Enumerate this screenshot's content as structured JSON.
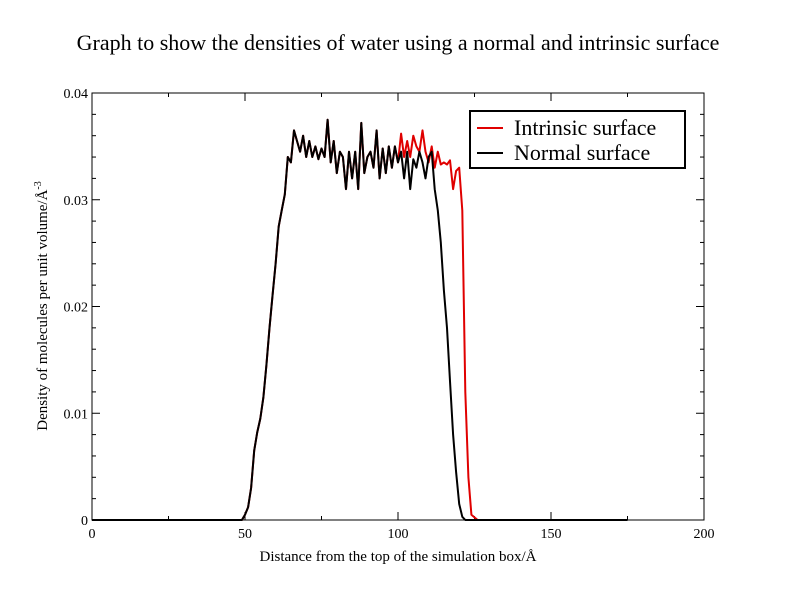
{
  "chart_data": {
    "type": "line",
    "title": "Graph to show the densities of water using a normal and intrinsic surface",
    "xlabel": "Distance from the top of the simulation box/Å",
    "ylabel": "Density of molecules per unit volume/Å",
    "ylabel_superscript": "-3",
    "xlim": [
      0,
      200
    ],
    "ylim": [
      0,
      0.04
    ],
    "x_ticks": [
      "0",
      "50",
      "100",
      "150",
      "200"
    ],
    "y_ticks": [
      "0",
      "0.01",
      "0.02",
      "0.03",
      "0.04"
    ],
    "legend_position": "top-right",
    "grid": false,
    "series": [
      {
        "name": "Intrinsic surface",
        "color": "#e00000",
        "x": [
          0,
          20,
          40,
          49,
          50,
          51,
          52,
          53,
          54,
          55,
          56,
          57,
          58,
          59,
          60,
          61,
          62,
          63,
          64,
          65,
          66,
          67,
          68,
          69,
          70,
          71,
          72,
          73,
          74,
          75,
          76,
          77,
          78,
          79,
          80,
          81,
          82,
          83,
          84,
          85,
          86,
          87,
          88,
          89,
          90,
          91,
          92,
          93,
          94,
          95,
          96,
          97,
          98,
          99,
          100,
          101,
          102,
          103,
          104,
          105,
          106,
          107,
          108,
          109,
          110,
          111,
          112,
          113,
          114,
          115,
          116,
          117,
          118,
          119,
          120,
          121,
          122,
          123,
          124,
          126,
          140,
          160,
          175
        ],
        "y": [
          0,
          0,
          0,
          0,
          0.0005,
          0.0012,
          0.003,
          0.0065,
          0.0082,
          0.0095,
          0.0115,
          0.0145,
          0.018,
          0.021,
          0.024,
          0.0275,
          0.029,
          0.0305,
          0.034,
          0.0335,
          0.0365,
          0.0355,
          0.0345,
          0.036,
          0.034,
          0.0355,
          0.034,
          0.035,
          0.0338,
          0.0348,
          0.034,
          0.0375,
          0.0335,
          0.0355,
          0.0325,
          0.0345,
          0.034,
          0.031,
          0.0345,
          0.032,
          0.0345,
          0.031,
          0.0372,
          0.0325,
          0.034,
          0.0345,
          0.033,
          0.0365,
          0.032,
          0.0348,
          0.0325,
          0.035,
          0.033,
          0.035,
          0.0335,
          0.0362,
          0.034,
          0.0355,
          0.034,
          0.036,
          0.035,
          0.0345,
          0.0365,
          0.0345,
          0.0335,
          0.035,
          0.033,
          0.0345,
          0.0333,
          0.0335,
          0.0333,
          0.0337,
          0.031,
          0.0327,
          0.033,
          0.029,
          0.012,
          0.004,
          0.0005,
          0,
          0,
          0,
          0
        ]
      },
      {
        "name": "Normal surface",
        "color": "#000000",
        "x": [
          0,
          20,
          40,
          49,
          50,
          51,
          52,
          53,
          54,
          55,
          56,
          57,
          58,
          59,
          60,
          61,
          62,
          63,
          64,
          65,
          66,
          67,
          68,
          69,
          70,
          71,
          72,
          73,
          74,
          75,
          76,
          77,
          78,
          79,
          80,
          81,
          82,
          83,
          84,
          85,
          86,
          87,
          88,
          89,
          90,
          91,
          92,
          93,
          94,
          95,
          96,
          97,
          98,
          99,
          100,
          101,
          102,
          103,
          104,
          105,
          106,
          107,
          108,
          109,
          110,
          111,
          112,
          113,
          114,
          115,
          116,
          117,
          118,
          119,
          120,
          121,
          122,
          123,
          124,
          126,
          140,
          160,
          175
        ],
        "y": [
          0,
          0,
          0,
          0,
          0.0005,
          0.0012,
          0.003,
          0.0065,
          0.0082,
          0.0095,
          0.0115,
          0.0145,
          0.018,
          0.021,
          0.024,
          0.0275,
          0.029,
          0.0305,
          0.034,
          0.0335,
          0.0365,
          0.0355,
          0.0345,
          0.036,
          0.034,
          0.0355,
          0.034,
          0.035,
          0.0338,
          0.0348,
          0.034,
          0.0375,
          0.0335,
          0.0355,
          0.0325,
          0.0345,
          0.034,
          0.031,
          0.0345,
          0.032,
          0.0345,
          0.031,
          0.0372,
          0.0325,
          0.034,
          0.0345,
          0.033,
          0.0365,
          0.032,
          0.0348,
          0.0325,
          0.035,
          0.033,
          0.035,
          0.0335,
          0.0345,
          0.032,
          0.0345,
          0.031,
          0.0338,
          0.033,
          0.0345,
          0.0335,
          0.032,
          0.034,
          0.0345,
          0.031,
          0.029,
          0.026,
          0.0215,
          0.018,
          0.013,
          0.008,
          0.0045,
          0.0015,
          0.0003,
          0,
          0,
          0,
          0,
          0,
          0,
          0
        ]
      }
    ]
  }
}
